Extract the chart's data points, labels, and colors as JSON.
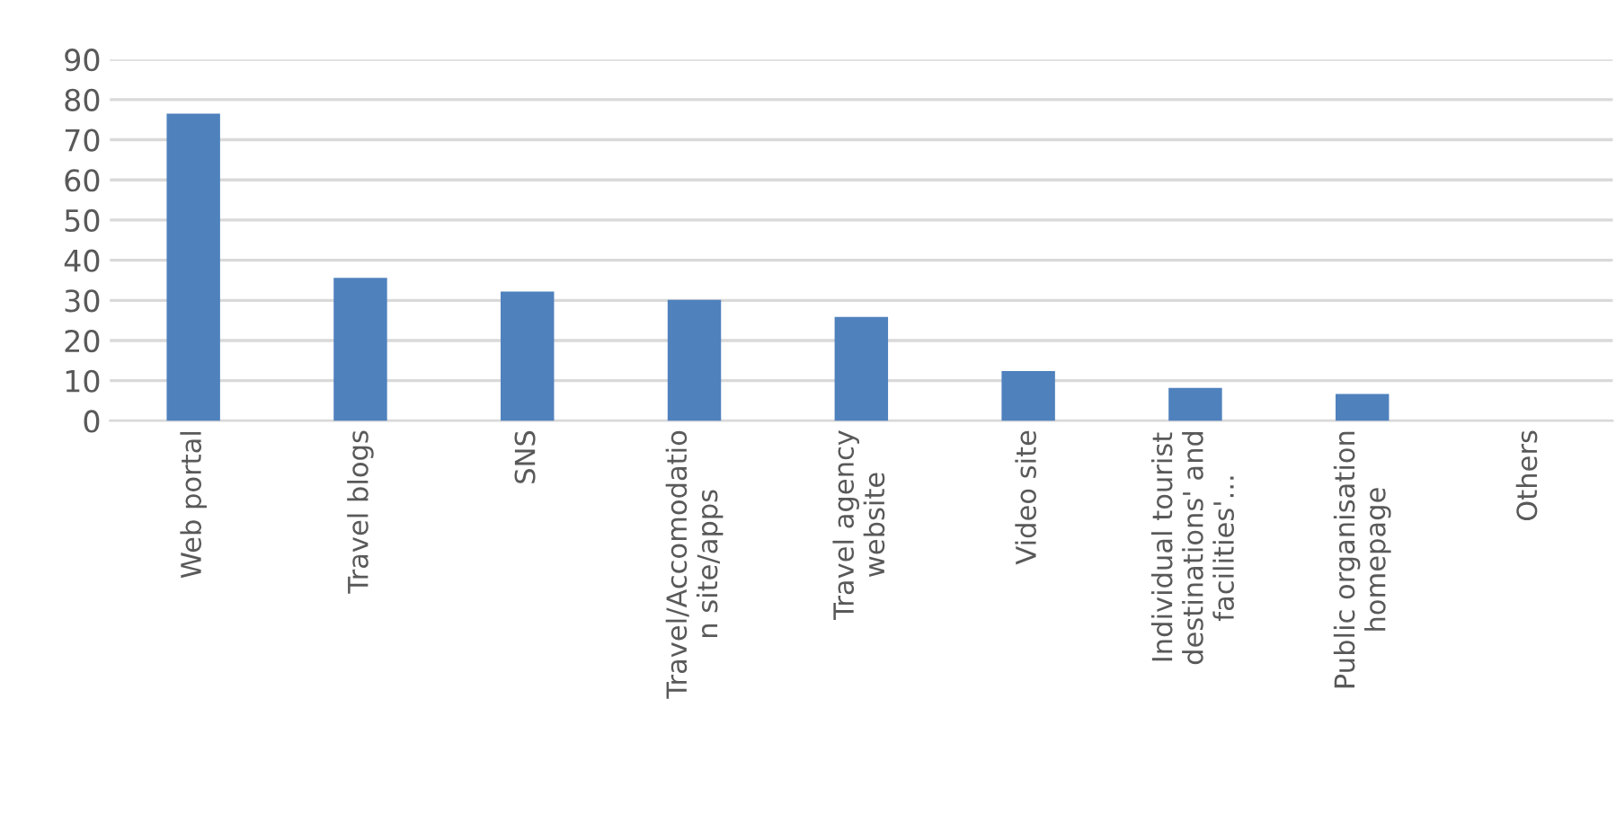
{
  "chart_data": {
    "type": "bar",
    "categories": [
      "Web portal",
      "Travel blogs",
      "SNS",
      "Travel/Accomodatio\nn site/apps",
      "Travel agency\nwebsite",
      "Video site",
      "Individual tourist\ndestinations' and\nfacilities'...",
      "Public organisation\nhomepage",
      "Others"
    ],
    "values": [
      76.5,
      35.6,
      32.2,
      30.1,
      25.9,
      12.4,
      8.2,
      6.7,
      0
    ],
    "color": "#4f81bd",
    "ylim": [
      0,
      90
    ],
    "yticks": [
      0,
      10,
      20,
      30,
      40,
      50,
      60,
      70,
      80,
      90
    ],
    "grid": "y"
  }
}
